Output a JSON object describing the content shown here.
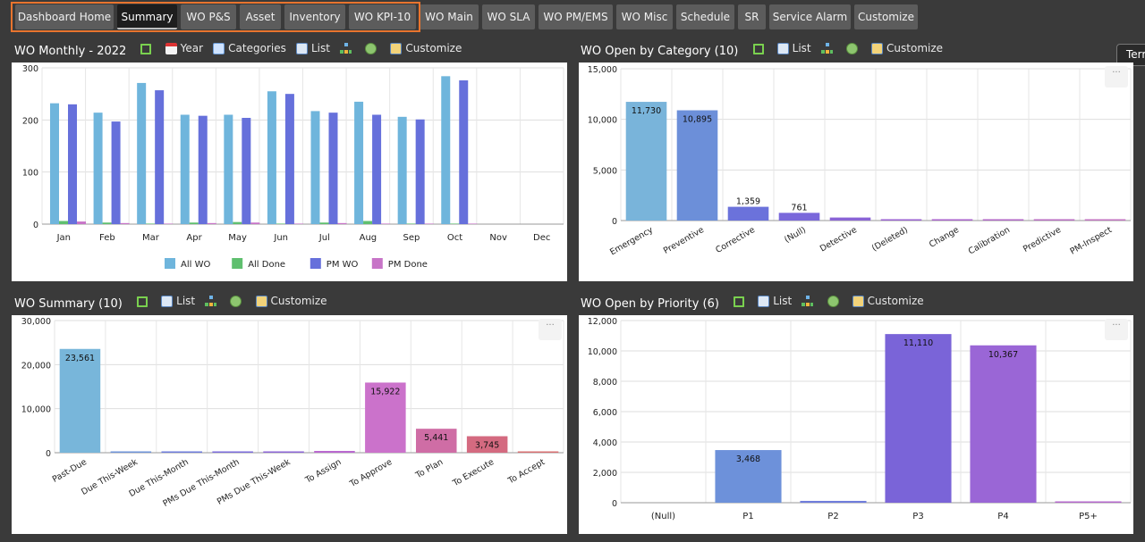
{
  "tabs": [
    {
      "label": "Dashboard Home"
    },
    {
      "label": "Summary"
    },
    {
      "label": "WO P&S"
    },
    {
      "label": "Asset"
    },
    {
      "label": "Inventory"
    },
    {
      "label": "WO KPI-10"
    },
    {
      "label": "WO Main"
    },
    {
      "label": "WO SLA"
    },
    {
      "label": "WO PM/EMS"
    },
    {
      "label": "WO Misc"
    },
    {
      "label": "Schedule"
    },
    {
      "label": "SR"
    },
    {
      "label": "Service Alarm"
    },
    {
      "label": "Customize"
    }
  ],
  "active_tab": "Summary",
  "side_tab": {
    "label": "Terr"
  },
  "toolbar": {
    "year": "Year",
    "categories": "Categories",
    "list": "List",
    "customize": "Customize"
  },
  "panels": {
    "monthly": {
      "title": "WO Monthly - 2022"
    },
    "category": {
      "title": "WO Open by Category (10)"
    },
    "summary": {
      "title": "WO Summary (10)"
    },
    "priority": {
      "title": "WO Open by Priority (6)"
    }
  },
  "chart_data": [
    {
      "type": "bar",
      "title": "WO Monthly - 2022",
      "categories": [
        "Jan",
        "Feb",
        "Mar",
        "Apr",
        "May",
        "Jun",
        "Jul",
        "Aug",
        "Sep",
        "Oct",
        "Nov",
        "Dec"
      ],
      "ylim": [
        0,
        300
      ],
      "yticks": [
        0,
        100,
        200,
        300
      ],
      "series": [
        {
          "name": "All WO",
          "color": "#6fb5dc",
          "values": [
            232,
            214,
            271,
            210,
            210,
            255,
            217,
            235,
            206,
            284,
            0,
            0
          ]
        },
        {
          "name": "All Done",
          "color": "#5fbf6f",
          "values": [
            6,
            3,
            1,
            3,
            4,
            1,
            3,
            6,
            1,
            1,
            0,
            0
          ]
        },
        {
          "name": "PM WO",
          "color": "#6670db",
          "values": [
            230,
            197,
            257,
            208,
            204,
            250,
            214,
            210,
            201,
            276,
            0,
            0
          ]
        },
        {
          "name": "PM Done",
          "color": "#c774c7",
          "values": [
            5,
            2,
            1,
            2,
            3,
            1,
            2,
            1,
            1,
            1,
            0,
            0
          ]
        }
      ]
    },
    {
      "type": "bar",
      "title": "WO Open by Category (10)",
      "categories": [
        "Emergency",
        "Preventive",
        "Corrective",
        "(Null)",
        "Detective",
        "(Deleted)",
        "Change",
        "Calibration",
        "Predictive",
        "PM-Inspect"
      ],
      "ylim": [
        0,
        15000
      ],
      "yticks": [
        "0",
        "5,000",
        "10,000",
        "15,000"
      ],
      "values": [
        11730,
        10895,
        1359,
        761,
        300,
        60,
        10,
        5,
        3,
        2
      ],
      "labels": [
        "11,730",
        "10,895",
        "1,359",
        "761",
        "",
        "",
        "",
        "",
        "",
        ""
      ],
      "colors": [
        "#79b4da",
        "#6c8fd9",
        "#6b72db",
        "#7a68db",
        "#8a64d6",
        "#9a62d2",
        "#a862cc",
        "#b066c6",
        "#b86cc2",
        "#c272c0"
      ]
    },
    {
      "type": "bar",
      "title": "WO Summary (10)",
      "categories": [
        "Past-Due",
        "Due This-Week",
        "Due This-Month",
        "PMs Due This-Month",
        "PMs Due This-Week",
        "To Assign",
        "To Approve",
        "To Plan",
        "To Execute",
        "To Accept"
      ],
      "ylim": [
        0,
        30000
      ],
      "yticks": [
        "0",
        "10,000",
        "20,000",
        "30,000"
      ],
      "values": [
        23561,
        40,
        300,
        120,
        20,
        400,
        15922,
        5441,
        3745,
        10
      ],
      "labels": [
        "23,561",
        "",
        "",
        "",
        "",
        "",
        "15,922",
        "5,441",
        "3,745",
        ""
      ],
      "colors": [
        "#78b6da",
        "#6f95da",
        "#6e7ddb",
        "#7c6ddb",
        "#8d66d6",
        "#b866cf",
        "#cb72cb",
        "#cf6da5",
        "#d46a80",
        "#d87072"
      ]
    },
    {
      "type": "bar",
      "title": "WO Open by Priority (6)",
      "categories": [
        "(Null)",
        "P1",
        "P2",
        "P3",
        "P4",
        "P5+"
      ],
      "ylim": [
        0,
        12000
      ],
      "yticks": [
        "0",
        "2,000",
        "4,000",
        "6,000",
        "8,000",
        "10,000",
        "12,000"
      ],
      "values": [
        0,
        3468,
        120,
        11110,
        10367,
        40
      ],
      "labels": [
        "",
        "3,468",
        "",
        "11,110",
        "10,367",
        ""
      ],
      "colors": [
        "#79b4da",
        "#6d91da",
        "#6f7cdb",
        "#7a64d8",
        "#9a66d6",
        "#b468cc"
      ]
    }
  ]
}
